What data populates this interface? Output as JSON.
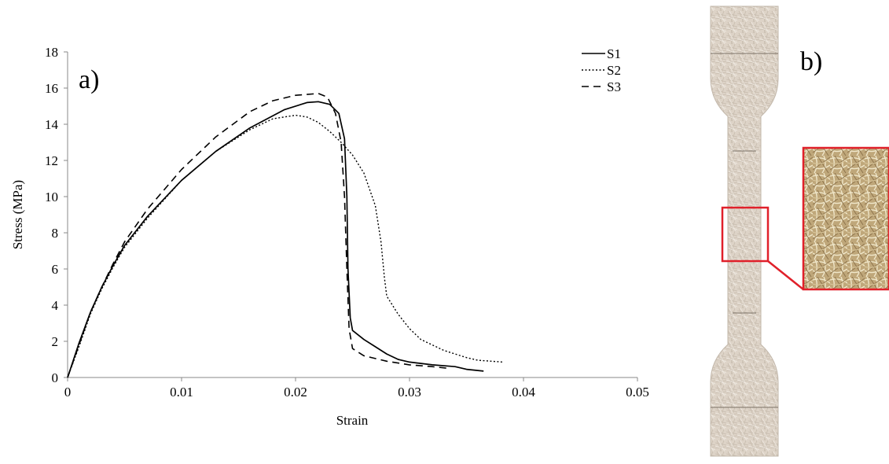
{
  "chart_data": {
    "type": "line",
    "panel_label": "a)",
    "title": "",
    "xlabel": "Strain",
    "ylabel": "Stress (MPa)",
    "xlim": [
      0,
      0.05
    ],
    "ylim": [
      0,
      18
    ],
    "x_ticks": [
      0,
      0.01,
      0.02,
      0.03,
      0.04,
      0.05
    ],
    "x_tick_labels": [
      "0",
      "0.01",
      "0.02",
      "0.03",
      "0.04",
      "0.05"
    ],
    "y_ticks": [
      0,
      2,
      4,
      6,
      8,
      10,
      12,
      14,
      16,
      18
    ],
    "y_tick_labels": [
      "0",
      "2",
      "4",
      "6",
      "8",
      "10",
      "12",
      "14",
      "16",
      "18"
    ],
    "grid": false,
    "legend_position": "top-right",
    "series": [
      {
        "name": "S1",
        "style": "solid",
        "points": [
          [
            0,
            0
          ],
          [
            0.001,
            1.9
          ],
          [
            0.002,
            3.6
          ],
          [
            0.003,
            5.0
          ],
          [
            0.004,
            6.2
          ],
          [
            0.005,
            7.3
          ],
          [
            0.007,
            8.9
          ],
          [
            0.01,
            10.9
          ],
          [
            0.013,
            12.5
          ],
          [
            0.016,
            13.8
          ],
          [
            0.019,
            14.8
          ],
          [
            0.021,
            15.2
          ],
          [
            0.022,
            15.25
          ],
          [
            0.023,
            15.1
          ],
          [
            0.0238,
            14.6
          ],
          [
            0.0243,
            13.2
          ],
          [
            0.0245,
            10.0
          ],
          [
            0.0246,
            6.0
          ],
          [
            0.0248,
            3.3
          ],
          [
            0.025,
            2.6
          ],
          [
            0.026,
            2.1
          ],
          [
            0.027,
            1.7
          ],
          [
            0.028,
            1.3
          ],
          [
            0.029,
            1.0
          ],
          [
            0.03,
            0.85
          ],
          [
            0.032,
            0.7
          ],
          [
            0.034,
            0.6
          ],
          [
            0.035,
            0.45
          ],
          [
            0.0365,
            0.35
          ]
        ]
      },
      {
        "name": "S2",
        "style": "dotted",
        "points": [
          [
            0,
            0
          ],
          [
            0.001,
            1.7
          ],
          [
            0.002,
            3.5
          ],
          [
            0.003,
            4.9
          ],
          [
            0.004,
            6.1
          ],
          [
            0.005,
            7.2
          ],
          [
            0.007,
            8.8
          ],
          [
            0.01,
            10.9
          ],
          [
            0.013,
            12.5
          ],
          [
            0.016,
            13.7
          ],
          [
            0.018,
            14.3
          ],
          [
            0.02,
            14.5
          ],
          [
            0.021,
            14.4
          ],
          [
            0.022,
            14.1
          ],
          [
            0.023,
            13.6
          ],
          [
            0.024,
            13.0
          ],
          [
            0.025,
            12.3
          ],
          [
            0.026,
            11.3
          ],
          [
            0.027,
            9.5
          ],
          [
            0.0275,
            7.5
          ],
          [
            0.0278,
            5.5
          ],
          [
            0.028,
            4.5
          ],
          [
            0.029,
            3.5
          ],
          [
            0.03,
            2.7
          ],
          [
            0.031,
            2.1
          ],
          [
            0.032,
            1.8
          ],
          [
            0.033,
            1.5
          ],
          [
            0.034,
            1.3
          ],
          [
            0.035,
            1.1
          ],
          [
            0.036,
            0.95
          ],
          [
            0.0372,
            0.9
          ],
          [
            0.0382,
            0.85
          ]
        ]
      },
      {
        "name": "S3",
        "style": "dashed",
        "points": [
          [
            0,
            0
          ],
          [
            0.001,
            1.8
          ],
          [
            0.002,
            3.6
          ],
          [
            0.003,
            5.0
          ],
          [
            0.004,
            6.3
          ],
          [
            0.005,
            7.5
          ],
          [
            0.007,
            9.3
          ],
          [
            0.01,
            11.5
          ],
          [
            0.013,
            13.3
          ],
          [
            0.016,
            14.7
          ],
          [
            0.018,
            15.3
          ],
          [
            0.02,
            15.6
          ],
          [
            0.022,
            15.7
          ],
          [
            0.0228,
            15.5
          ],
          [
            0.0235,
            14.6
          ],
          [
            0.024,
            13.0
          ],
          [
            0.0243,
            10.0
          ],
          [
            0.0245,
            6.0
          ],
          [
            0.0247,
            2.7
          ],
          [
            0.025,
            1.6
          ],
          [
            0.026,
            1.2
          ],
          [
            0.028,
            0.9
          ],
          [
            0.03,
            0.7
          ],
          [
            0.032,
            0.6
          ],
          [
            0.0335,
            0.5
          ]
        ]
      }
    ]
  },
  "specimen_panel": {
    "panel_label": "b)",
    "inset_frame_color": "#e0202a",
    "specimen_color": "#d9cfc3"
  }
}
